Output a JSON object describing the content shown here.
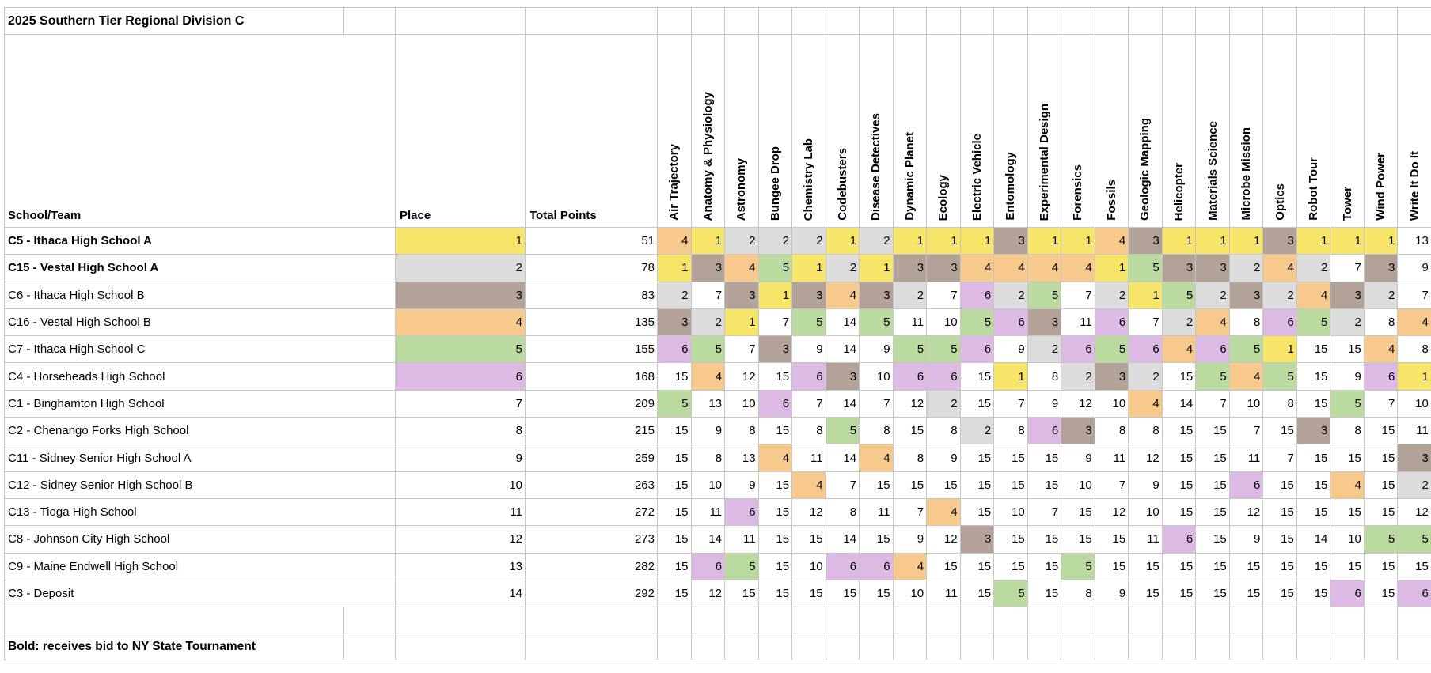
{
  "title": "2025 Southern Tier Regional Division C",
  "note": "Bold: receives bid to NY State Tournament",
  "columns": {
    "school": "School/Team",
    "place": "Place",
    "total": "Total Points"
  },
  "events": [
    "Air Trajectory",
    "Anatomy & Physiology",
    "Astronomy",
    "Bungee Drop",
    "Chemistry Lab",
    "Codebusters",
    "Disease Detectives",
    "Dynamic Planet",
    "Ecology",
    "Electric Vehicle",
    "Entomology",
    "Experimental Design",
    "Forensics",
    "Fossils",
    "Geologic Mapping",
    "Helicopter",
    "Materials Science",
    "Microbe Mission",
    "Optics",
    "Robot Tour",
    "Tower",
    "Wind Power",
    "Write It Do It"
  ],
  "place_colors": {
    "1": "#f7e569",
    "2": "#dcdcdc",
    "3": "#b2a298",
    "4": "#f8c98d",
    "5": "#bada9f",
    "6": "#dcbae3"
  },
  "grid_color": "#c6c6c6",
  "teams": [
    {
      "name": "C5 - Ithaca High School A",
      "bold": true,
      "place": 1,
      "total": 51,
      "scores": [
        4,
        1,
        2,
        2,
        2,
        1,
        2,
        1,
        1,
        1,
        3,
        1,
        1,
        4,
        3,
        1,
        1,
        1,
        3,
        1,
        1,
        1,
        13
      ]
    },
    {
      "name": "C15 - Vestal High School A",
      "bold": true,
      "place": 2,
      "total": 78,
      "scores": [
        1,
        3,
        4,
        5,
        1,
        2,
        1,
        3,
        3,
        4,
        4,
        4,
        4,
        1,
        5,
        3,
        3,
        2,
        4,
        2,
        7,
        3,
        9
      ]
    },
    {
      "name": "C6 - Ithaca High School B",
      "bold": false,
      "place": 3,
      "total": 83,
      "scores": [
        2,
        7,
        3,
        1,
        3,
        4,
        3,
        2,
        7,
        6,
        2,
        5,
        7,
        2,
        1,
        5,
        2,
        3,
        2,
        4,
        3,
        2,
        7
      ]
    },
    {
      "name": "C16 - Vestal High School B",
      "bold": false,
      "place": 4,
      "total": 135,
      "scores": [
        3,
        2,
        1,
        7,
        5,
        14,
        5,
        11,
        10,
        5,
        6,
        3,
        11,
        6,
        7,
        2,
        4,
        8,
        6,
        5,
        2,
        8,
        4
      ]
    },
    {
      "name": "C7 - Ithaca High School C",
      "bold": false,
      "place": 5,
      "total": 155,
      "scores": [
        6,
        5,
        7,
        3,
        9,
        14,
        9,
        5,
        5,
        6,
        9,
        2,
        6,
        5,
        6,
        4,
        6,
        5,
        1,
        15,
        15,
        4,
        8
      ]
    },
    {
      "name": "C4 - Horseheads High School",
      "bold": false,
      "place": 6,
      "total": 168,
      "scores": [
        15,
        4,
        12,
        15,
        6,
        3,
        10,
        6,
        6,
        15,
        1,
        8,
        2,
        3,
        2,
        15,
        5,
        4,
        5,
        15,
        9,
        6,
        1
      ]
    },
    {
      "name": "C1 - Binghamton High School",
      "bold": false,
      "place": 7,
      "total": 209,
      "scores": [
        5,
        13,
        10,
        6,
        7,
        14,
        7,
        12,
        2,
        15,
        7,
        9,
        12,
        10,
        4,
        14,
        7,
        10,
        8,
        15,
        5,
        7,
        10
      ]
    },
    {
      "name": "C2 - Chenango Forks High School",
      "bold": false,
      "place": 8,
      "total": 215,
      "scores": [
        15,
        9,
        8,
        15,
        8,
        5,
        8,
        15,
        8,
        2,
        8,
        6,
        3,
        8,
        8,
        15,
        15,
        7,
        15,
        3,
        8,
        15,
        11
      ]
    },
    {
      "name": "C11 - Sidney Senior High School A",
      "bold": false,
      "place": 9,
      "total": 259,
      "scores": [
        15,
        8,
        13,
        4,
        11,
        14,
        4,
        8,
        9,
        15,
        15,
        15,
        9,
        11,
        12,
        15,
        15,
        11,
        7,
        15,
        15,
        15,
        3
      ]
    },
    {
      "name": "C12 - Sidney Senior High School B",
      "bold": false,
      "place": 10,
      "total": 263,
      "scores": [
        15,
        10,
        9,
        15,
        4,
        7,
        15,
        15,
        15,
        15,
        15,
        15,
        10,
        7,
        9,
        15,
        15,
        6,
        15,
        15,
        4,
        15,
        2
      ]
    },
    {
      "name": "C13 - Tioga High School",
      "bold": false,
      "place": 11,
      "total": 272,
      "scores": [
        15,
        11,
        6,
        15,
        12,
        8,
        11,
        7,
        4,
        15,
        10,
        7,
        15,
        12,
        10,
        15,
        15,
        12,
        15,
        15,
        15,
        15,
        12
      ]
    },
    {
      "name": "C8 - Johnson City High School",
      "bold": false,
      "place": 12,
      "total": 273,
      "scores": [
        15,
        14,
        11,
        15,
        15,
        14,
        15,
        9,
        12,
        3,
        15,
        15,
        15,
        15,
        11,
        6,
        15,
        9,
        15,
        14,
        10,
        5,
        5
      ]
    },
    {
      "name": "C9 - Maine Endwell High School",
      "bold": false,
      "place": 13,
      "total": 282,
      "scores": [
        15,
        6,
        5,
        15,
        10,
        6,
        6,
        4,
        15,
        15,
        15,
        15,
        5,
        15,
        15,
        15,
        15,
        15,
        15,
        15,
        15,
        15,
        15
      ]
    },
    {
      "name": "C3 - Deposit",
      "bold": false,
      "place": 14,
      "total": 292,
      "scores": [
        15,
        12,
        15,
        15,
        15,
        15,
        15,
        10,
        11,
        15,
        5,
        15,
        8,
        9,
        15,
        15,
        15,
        15,
        15,
        15,
        6,
        15,
        6
      ]
    }
  ]
}
